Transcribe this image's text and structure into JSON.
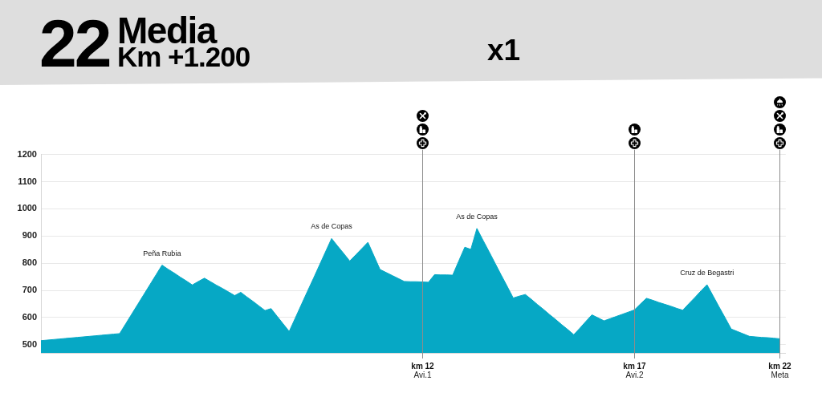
{
  "chart_data": {
    "type": "area",
    "title": "22",
    "subtitle": "Media\nKm +1.200",
    "annotations": [
      "x1",
      {
        "text": "Peña Rubia",
        "y": 793
      },
      {
        "text": "As de Copas",
        "y": 891
      },
      {
        "text": "As de Copas",
        "y": 928
      },
      {
        "text": "Cruz de Begastri",
        "y": 721
      }
    ],
    "categories": [
      null,
      null,
      null,
      null,
      null,
      null,
      null,
      null,
      null,
      null,
      null,
      null,
      null,
      null,
      null,
      null,
      null,
      null,
      null,
      null,
      null,
      null,
      null,
      null,
      null,
      null,
      null,
      null,
      null,
      null,
      null,
      null,
      null,
      null,
      null,
      null,
      null,
      null,
      null,
      null,
      null,
      null,
      null,
      null,
      null,
      null,
      null,
      null,
      null,
      null,
      null,
      null,
      null,
      null,
      null,
      null,
      null,
      null,
      null,
      null,
      null,
      null,
      null,
      "km 12",
      null,
      null,
      null,
      null,
      null,
      null,
      null,
      null,
      null,
      null,
      null,
      null,
      null,
      null,
      null,
      null,
      null,
      null,
      null,
      null,
      null,
      null,
      null,
      null,
      null,
      null,
      null,
      null,
      null,
      null,
      null,
      null,
      null,
      null,
      "km 17",
      null,
      null,
      null,
      null,
      null,
      null,
      null,
      null,
      null,
      null,
      null,
      null,
      null,
      null,
      null,
      null,
      null,
      null,
      null,
      null,
      null,
      null,
      null,
      "km 22",
      null
    ],
    "series": [
      {
        "color": "#06a8c5",
        "values": [
          515,
          517,
          519,
          521,
          523,
          525,
          527,
          529,
          531,
          533,
          535,
          537,
          539,
          541,
          577,
          613,
          649,
          685,
          721,
          757,
          793,
          778,
          764,
          749,
          735,
          720,
          733,
          745,
          732,
          719,
          707,
          694,
          681,
          693,
          676,
          660,
          643,
          626,
          633,
          605,
          577,
          549,
          598,
          647,
          696,
          744,
          793,
          842,
          891,
          863,
          836,
          808,
          831,
          854,
          877,
          827,
          777,
          766,
          755,
          744,
          733,
          732,
          732,
          731,
          730,
          758,
          757,
          757,
          756,
          808,
          859,
          851,
          928,
          885,
          843,
          800,
          757,
          715,
          672,
          679,
          685,
          667,
          648,
          630,
          611,
          593,
          574,
          556,
          537,
          561,
          586,
          610,
          599,
          588,
          596,
          604,
          612,
          620,
          628,
          650,
          671,
          664,
          656,
          649,
          642,
          634,
          627,
          651,
          674,
          698,
          721,
          680,
          639,
          599,
          558,
          549,
          540,
          531,
          529,
          527,
          526,
          524,
          522,
          null
        ]
      }
    ],
    "ylim": [
      470,
      1200
    ],
    "yticks": [
      500,
      600,
      700,
      800,
      900,
      1000,
      1100,
      1200
    ],
    "grid": "y",
    "ref_lines": [
      {
        "axis": "x",
        "value": "km 12",
        "label": "Avi.1",
        "color": "#8c8c8c"
      },
      {
        "axis": "x",
        "value": "km 17",
        "label": "Avi.2",
        "color": "#8c8c8c"
      },
      {
        "axis": "x",
        "value": "km 22",
        "label": "Meta",
        "color": "#8c8c8c"
      }
    ]
  }
}
